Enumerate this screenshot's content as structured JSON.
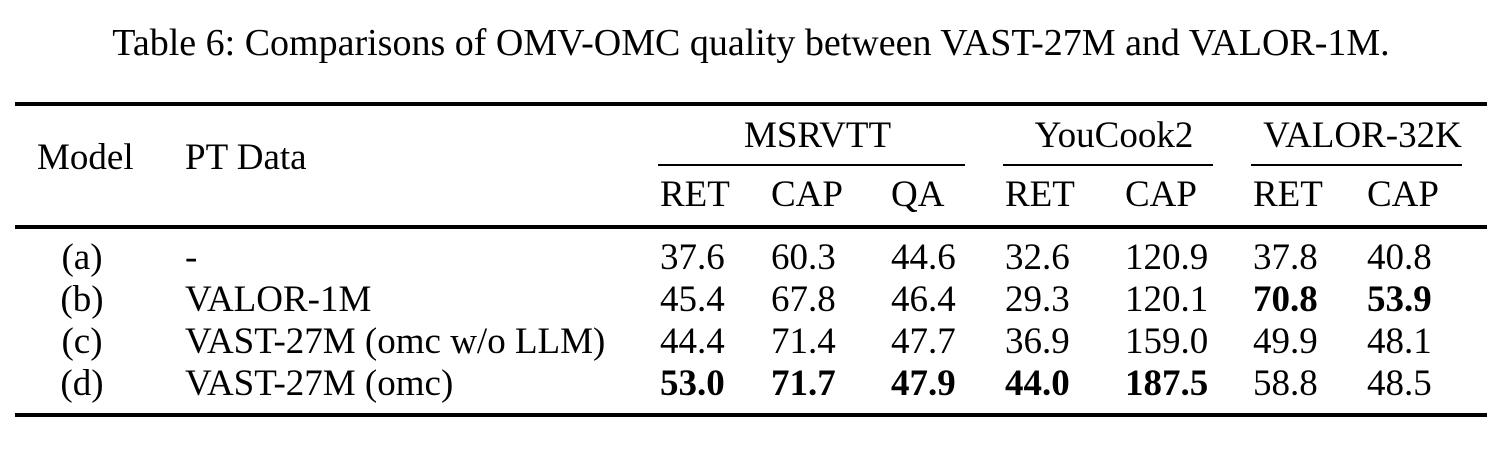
{
  "caption": "Table 6: Comparisons of OMV-OMC quality between VAST-27M and VALOR-1M.",
  "table": {
    "header": {
      "model_label": "Model",
      "pt_data_label": "PT Data",
      "groups": [
        {
          "label": "MSRVTT",
          "subcolumns": [
            "RET",
            "CAP",
            "QA"
          ]
        },
        {
          "label": "YouCook2",
          "subcolumns": [
            "RET",
            "CAP"
          ]
        },
        {
          "label": "VALOR-32K",
          "subcolumns": [
            "RET",
            "CAP"
          ]
        }
      ]
    },
    "rows": [
      {
        "model": "(a)",
        "pt_data": "-",
        "values": [
          "37.6",
          "60.3",
          "44.6",
          "32.6",
          "120.9",
          "37.8",
          "40.8"
        ],
        "bold": [
          false,
          false,
          false,
          false,
          false,
          false,
          false
        ]
      },
      {
        "model": "(b)",
        "pt_data": "VALOR-1M",
        "values": [
          "45.4",
          "67.8",
          "46.4",
          "29.3",
          "120.1",
          "70.8",
          "53.9"
        ],
        "bold": [
          false,
          false,
          false,
          false,
          false,
          true,
          true
        ]
      },
      {
        "model": "(c)",
        "pt_data": "VAST-27M (omc w/o LLM)",
        "values": [
          "44.4",
          "71.4",
          "47.7",
          "36.9",
          "159.0",
          "49.9",
          "48.1"
        ],
        "bold": [
          false,
          false,
          false,
          false,
          false,
          false,
          false
        ]
      },
      {
        "model": "(d)",
        "pt_data": "VAST-27M (omc)",
        "values": [
          "53.0",
          "71.7",
          "47.9",
          "44.0",
          "187.5",
          "58.8",
          "48.5"
        ],
        "bold": [
          true,
          true,
          true,
          true,
          true,
          false,
          false
        ]
      }
    ]
  }
}
